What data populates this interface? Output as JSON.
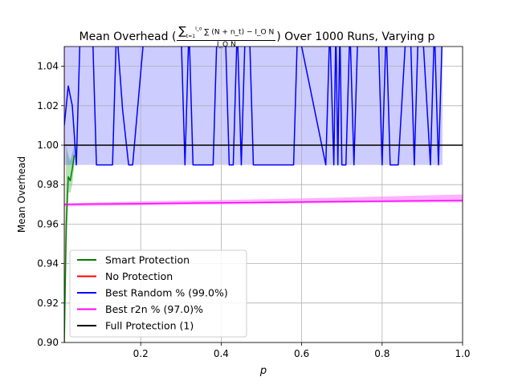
{
  "chart_data": {
    "type": "line",
    "title": {
      "prefix": "Mean Overhead (",
      "numerator": "∑ (N + n_t) − I_O N",
      "sum_upper": "I_o",
      "sum_lower": "t=1",
      "denominator": "I_O N",
      "suffix": ") Over 1000 Runs, Varying p"
    },
    "xlabel": "p",
    "ylabel": "Mean Overhead",
    "xlim": [
      0.01,
      1.0
    ],
    "ylim": [
      0.9,
      1.05
    ],
    "xticks": [
      "0.2",
      "0.4",
      "0.6",
      "0.8",
      "1.0"
    ],
    "yticks": [
      "0.90",
      "0.92",
      "0.94",
      "0.96",
      "0.98",
      "1.00",
      "1.02",
      "1.04"
    ],
    "grid": true,
    "legend_position": "lower-left",
    "series": [
      {
        "name": "Smart Protection",
        "color": "#008000",
        "x": [
          0.01,
          0.015,
          0.02,
          0.025,
          0.03,
          0.035
        ],
        "y": [
          0.9,
          0.96,
          0.984,
          0.982,
          0.988,
          0.995
        ],
        "band_low": [
          0.88,
          0.94,
          0.976,
          0.976,
          0.98,
          0.99
        ],
        "band_high": [
          0.92,
          1.0,
          0.995,
          0.992,
          0.996,
          1.0
        ]
      },
      {
        "name": "No Protection",
        "color": "#ff0000",
        "x": [
          0.01,
          0.012
        ],
        "y": [
          1.06,
          1.06
        ],
        "band_low": [
          0.9,
          0.9
        ],
        "band_high": [
          1.06,
          1.06
        ]
      },
      {
        "name": "Best Random % (99.0%)",
        "color": "#0000ff",
        "x": [
          0.01,
          0.02,
          0.03,
          0.04,
          0.05,
          0.08,
          0.09,
          0.13,
          0.14,
          0.155,
          0.17,
          0.18,
          0.21,
          0.22,
          0.3,
          0.31,
          0.32,
          0.33,
          0.38,
          0.39,
          0.41,
          0.42,
          0.43,
          0.44,
          0.45,
          0.46,
          0.47,
          0.48,
          0.58,
          0.59,
          0.66,
          0.67,
          0.68,
          0.685,
          0.69,
          0.695,
          0.7,
          0.71,
          0.72,
          0.73,
          0.74,
          0.79,
          0.8,
          0.81,
          0.82,
          0.84,
          0.86,
          0.87,
          0.88,
          0.89,
          0.9,
          0.92,
          0.93,
          0.94,
          0.95
        ],
        "y": [
          1.01,
          1.03,
          1.02,
          0.99,
          1.06,
          1.06,
          0.99,
          0.99,
          1.06,
          1.018,
          0.99,
          0.99,
          1.06,
          1.06,
          1.06,
          0.99,
          1.06,
          0.99,
          0.99,
          1.06,
          1.06,
          0.99,
          0.99,
          1.06,
          0.99,
          1.06,
          1.06,
          0.99,
          0.99,
          1.06,
          0.99,
          1.06,
          0.99,
          1.06,
          0.99,
          1.06,
          0.99,
          0.99,
          1.06,
          0.99,
          1.06,
          1.06,
          0.99,
          1.06,
          0.99,
          0.99,
          1.06,
          1.06,
          0.99,
          1.06,
          1.06,
          0.99,
          1.06,
          0.99,
          1.06
        ],
        "band_low": 0.99,
        "band_high": 1.06
      },
      {
        "name": "Best r2n % (97.0)%",
        "color": "#ff00ff",
        "x": [
          0.01,
          0.2,
          0.4,
          0.6,
          0.8,
          1.0
        ],
        "y": [
          0.97,
          0.9704,
          0.9708,
          0.9712,
          0.9716,
          0.972
        ],
        "band_low": [
          0.969,
          0.9695,
          0.97,
          0.9705,
          0.971,
          0.971
        ],
        "band_high": [
          0.9705,
          0.9715,
          0.9722,
          0.973,
          0.974,
          0.975
        ]
      },
      {
        "name": "Full Protection (1)",
        "color": "#000000",
        "x": [
          0.01,
          1.0
        ],
        "y": [
          1.0,
          1.0
        ]
      }
    ]
  }
}
